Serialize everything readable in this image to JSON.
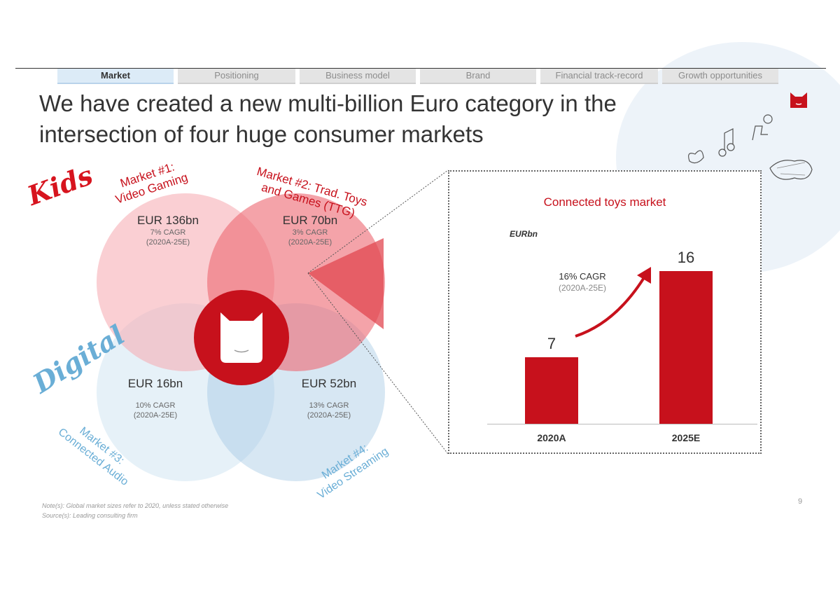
{
  "tabs": [
    {
      "label": "Market",
      "active": true
    },
    {
      "label": "Positioning",
      "active": false
    },
    {
      "label": "Business model",
      "active": false
    },
    {
      "label": "Brand",
      "active": false
    },
    {
      "label": "Financial track-record",
      "active": false
    },
    {
      "label": "Growth opportunities",
      "active": false
    }
  ],
  "title": "We have created a new multi-billion Euro category in the\nintersection of four huge consumer markets",
  "venn": {
    "kids_label": "Kids",
    "digital_label": "Digital",
    "markets": [
      {
        "name": "Market #1:\nVideo Gaming",
        "value": "EUR 136bn",
        "cagr": "7% CAGR",
        "period": "(2020A-25E)"
      },
      {
        "name": "Market #2: Trad. Toys\nand Games (TTG)",
        "value": "EUR 70bn",
        "cagr": "3% CAGR",
        "period": "(2020A-25E)"
      },
      {
        "name": "Market #3:\nConnected Audio",
        "value": "EUR 16bn",
        "cagr": "10% CAGR",
        "period": "(2020A-25E)"
      },
      {
        "name": "Market #4:\nVideo Streaming",
        "value": "EUR 52bn",
        "cagr": "13% CAGR",
        "period": "(2020A-25E)"
      }
    ]
  },
  "chart_data": {
    "type": "bar",
    "title": "Connected toys market",
    "unit": "EURbn",
    "categories": [
      "2020A",
      "2025E"
    ],
    "values": [
      7,
      16
    ],
    "ylim": [
      0,
      16
    ],
    "annotation": {
      "cagr": "16% CAGR",
      "period": "(2020A-25E)"
    },
    "colors": {
      "bar": "#c7111c"
    }
  },
  "footnote": {
    "note": "Note(s): Global market sizes refer to 2020, unless stated otherwise",
    "source": "Source(s): Leading consulting firm"
  },
  "page_number": "9",
  "colors": {
    "accent": "#c7111c",
    "digital_blue": "#6aaed6",
    "kids_pink": "#f7c5c8"
  }
}
